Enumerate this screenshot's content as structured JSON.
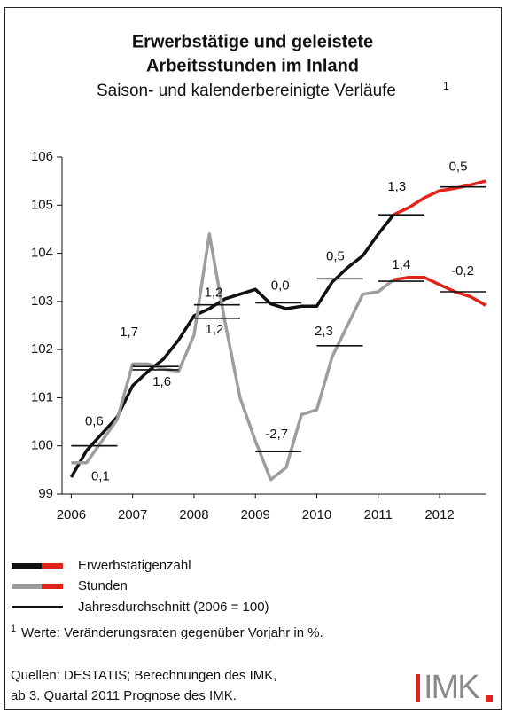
{
  "chart_data": {
    "type": "line",
    "title": [
      "Erwerbstätige und geleistete",
      "Arbeitsstunden im Inland"
    ],
    "subtitle": "Saison- und kalenderbereinigte Verläufe",
    "subtitle_note": "1",
    "x": [
      2006,
      2006.25,
      2006.5,
      2006.75,
      2007,
      2007.25,
      2007.5,
      2007.75,
      2008,
      2008.25,
      2008.5,
      2008.75,
      2009,
      2009.25,
      2009.5,
      2009.75,
      2010,
      2010.25,
      2010.5,
      2010.75,
      2011,
      2011.25,
      2011.5,
      2011.75,
      2012,
      2012.25,
      2012.5,
      2012.75
    ],
    "xlim": [
      2005.85,
      2012.75
    ],
    "xticks": [
      2006,
      2007,
      2008,
      2009,
      2010,
      2011,
      2012
    ],
    "ylim": [
      99,
      106
    ],
    "yticks": [
      99,
      100,
      101,
      102,
      103,
      104,
      105,
      106
    ],
    "forecast_from": 2011.5,
    "forecast_color": "#e2231a",
    "years": [
      2006,
      2007,
      2008,
      2009,
      2010,
      2011,
      2012
    ],
    "series": [
      {
        "name": "Erwerbstätigenzahl",
        "color": "#111111",
        "values": [
          99.35,
          99.9,
          100.25,
          100.6,
          101.25,
          101.55,
          101.8,
          102.2,
          102.7,
          102.85,
          103.05,
          103.15,
          103.25,
          102.95,
          102.85,
          102.9,
          102.9,
          103.4,
          103.7,
          103.95,
          104.4,
          104.8,
          104.95,
          105.15,
          105.3,
          105.35,
          105.42,
          105.5
        ],
        "annual_averages": {
          "values": [
            100.0,
            101.65,
            102.93,
            102.97,
            103.47,
            104.8,
            105.38
          ]
        },
        "change_rates": {
          "values": [
            0.6,
            1.7,
            1.2,
            0.0,
            0.5,
            1.3,
            0.5
          ],
          "value_labels": [
            "0,6",
            "1,7",
            "1,2",
            "0,0",
            "0,5",
            "1,3",
            "0,5"
          ]
        }
      },
      {
        "name": "Stunden",
        "color": "#9d9d9d",
        "values": [
          99.65,
          99.65,
          100.1,
          100.55,
          101.7,
          101.7,
          101.6,
          101.55,
          102.3,
          104.4,
          102.6,
          101.0,
          100.1,
          99.3,
          99.55,
          100.65,
          100.75,
          101.85,
          102.5,
          103.15,
          103.2,
          103.45,
          103.5,
          103.5,
          103.35,
          103.2,
          103.1,
          102.92
        ],
        "annual_averages": {
          "values": [
            100.0,
            101.58,
            102.65,
            99.88,
            102.08,
            103.42,
            103.2
          ]
        },
        "change_rates": {
          "values": [
            0.1,
            1.6,
            1.2,
            -2.7,
            2.3,
            1.4,
            -0.2
          ],
          "value_labels": [
            "0,1",
            "1,6",
            "1,2",
            "-2,7",
            "2,3",
            "1,4",
            "-0,2"
          ]
        }
      }
    ],
    "average_label": "Jahresdurchschnitt (2006 = 100)",
    "footnote": {
      "marker": "1",
      "text": "Werte: Veränderungsraten gegenüber Vorjahr in %."
    },
    "sources": [
      "Quellen: DESTATIS; Berechnungen des IMK,",
      "ab 3. Quartal 2011 Prognose des IMK."
    ],
    "logo": "IMK"
  }
}
